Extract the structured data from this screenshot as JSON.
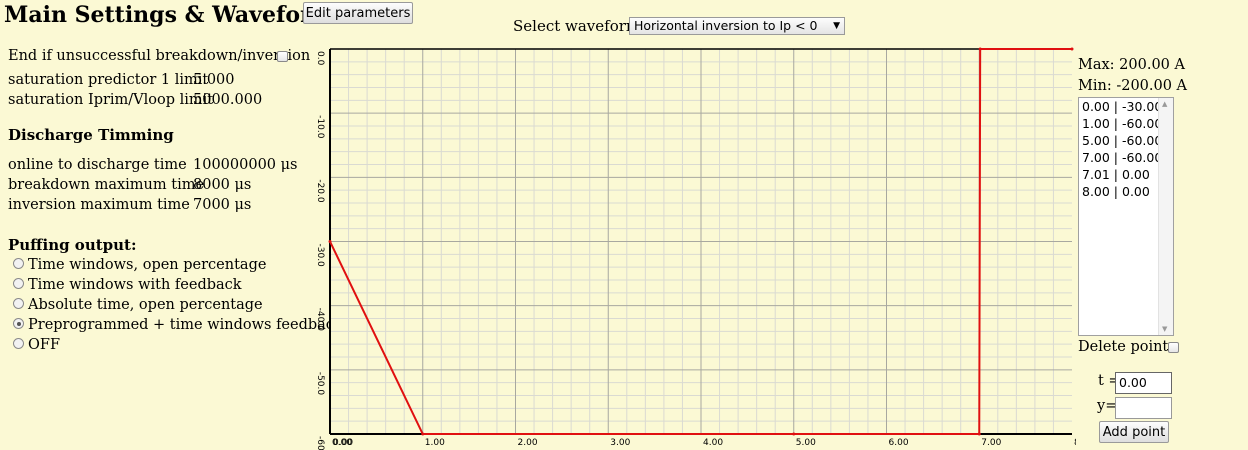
{
  "header": {
    "title": "Main Settings & Waveforms",
    "edit_button": "Edit parameters",
    "waveform_label": "Select waveform:",
    "waveform_selected": "Horizontal inversion to Ip < 0"
  },
  "left": {
    "end_if_label": "End if unsuccessful breakdown/inversion",
    "end_if_checked": false,
    "sat1_label": "saturation predictor 1 limit",
    "sat1_value": "5.000",
    "sat2_label": "saturation Iprim/Vloop limit",
    "sat2_value": "5000.000",
    "timing_heading": "Discharge Timming",
    "online_label": "online to discharge time",
    "online_value": "100000000 μs",
    "breakdown_label": "breakdown maximum time",
    "breakdown_value": "8000 μs",
    "inversion_label": "inversion maximum time",
    "inversion_value": "7000 μs",
    "puffing_heading": "Puffing output:",
    "puffing_options": [
      "Time windows, open percentage",
      "Time windows with feedback",
      "Absolute time, open percentage",
      "Preprogrammed + time windows feedback",
      "OFF"
    ],
    "puffing_selected_index": 3
  },
  "chart_data": {
    "type": "line",
    "xlim": [
      0,
      8
    ],
    "ylim": [
      -60,
      0
    ],
    "x_ticks": [
      "0.00",
      "1.00",
      "2.00",
      "3.00",
      "4.00",
      "5.00",
      "6.00",
      "7.00",
      "8."
    ],
    "x_tick_extra": "0.00",
    "y_ticks": [
      "0.0",
      "-10.0",
      "-20.0",
      "-30.0",
      "-40.0",
      "-50.0",
      "-60."
    ],
    "grid": true,
    "line_color": "#e01010",
    "series": [
      {
        "x": [
          0.0,
          1.0,
          5.0,
          7.0,
          7.01,
          8.0
        ],
        "y": [
          -30,
          -60,
          -60,
          -60,
          0,
          0
        ]
      }
    ]
  },
  "right": {
    "max_label": "Max: 200.00 A",
    "min_label": "Min: -200.00 A",
    "points": [
      "0.00 | -30.00",
      "1.00 | -60.00",
      "5.00 | -60.00",
      "7.00 | -60.00",
      "7.01 | 0.00",
      "8.00 | 0.00"
    ],
    "delete_label": "Delete points",
    "t_label": "t =",
    "t_value": "0.00",
    "y_label": "y=",
    "y_value": "",
    "add_button": "Add point"
  }
}
